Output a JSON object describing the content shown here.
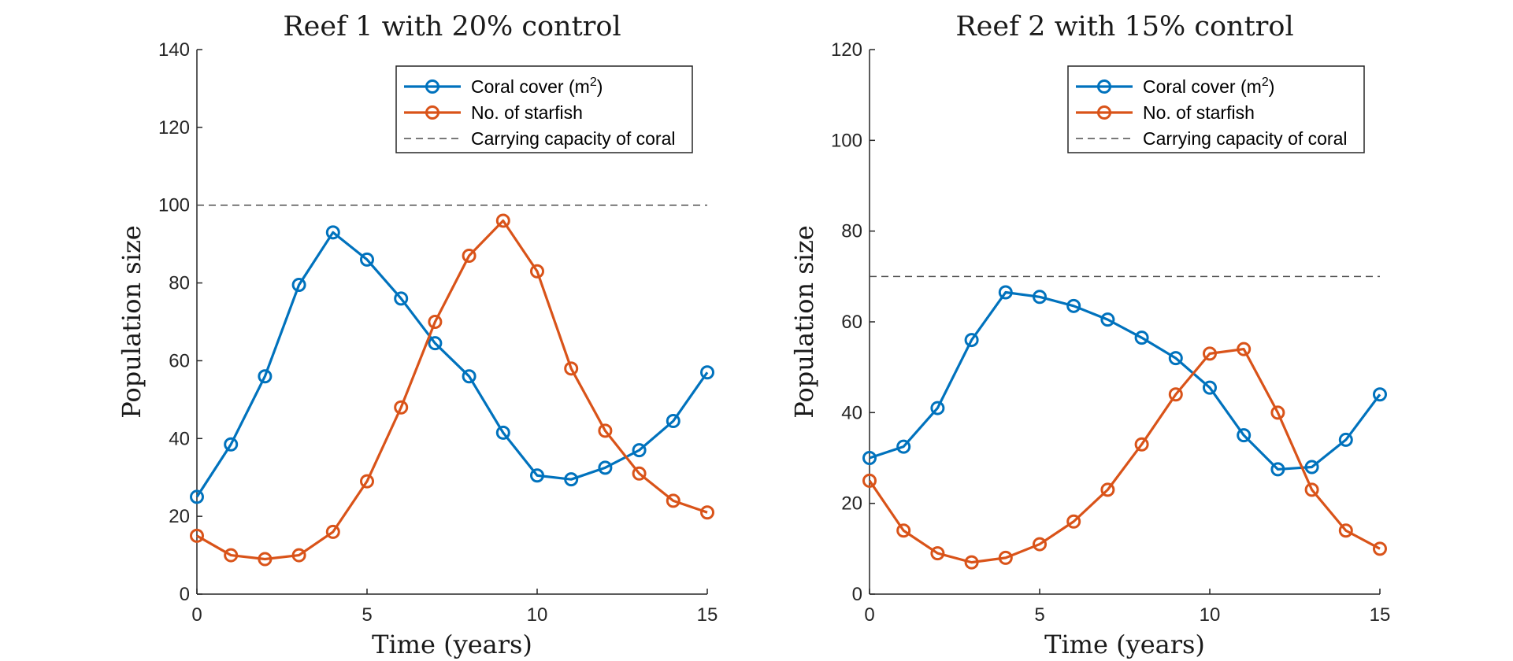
{
  "chart_data": [
    {
      "type": "line",
      "title": "Reef 1 with 20% control",
      "xlabel": "Time (years)",
      "ylabel": "Population size",
      "xlim": [
        0,
        15
      ],
      "ylim": [
        0,
        140
      ],
      "xticks": [
        0,
        5,
        10,
        15
      ],
      "yticks": [
        0,
        20,
        40,
        60,
        80,
        100,
        120,
        140
      ],
      "x": [
        0,
        1,
        2,
        3,
        4,
        5,
        6,
        7,
        8,
        9,
        10,
        11,
        12,
        13,
        14,
        15
      ],
      "series": [
        {
          "name": "Coral cover (m2)",
          "legend_base": "Coral cover (m",
          "legend_sup": "2",
          "legend_tail": ")",
          "color": "#0072BD",
          "marker": "circle",
          "values": [
            25,
            38.5,
            56,
            79.5,
            93,
            86,
            76,
            64.5,
            56,
            41.5,
            30.5,
            29.5,
            32.5,
            37,
            44.5,
            57
          ]
        },
        {
          "name": "No. of starfish",
          "color": "#D95319",
          "marker": "circle",
          "values": [
            15,
            10,
            9,
            10,
            16,
            29,
            48,
            70,
            87,
            96,
            83,
            58,
            42,
            31,
            24,
            21
          ]
        },
        {
          "name": "Carrying capacity of coral",
          "color": "#4d4d4d",
          "style": "dashed",
          "value": 100
        }
      ],
      "legend_position": "top-right",
      "grid": false
    },
    {
      "type": "line",
      "title": "Reef 2 with 15% control",
      "xlabel": "Time (years)",
      "ylabel": "Population size",
      "xlim": [
        0,
        15
      ],
      "ylim": [
        0,
        120
      ],
      "xticks": [
        0,
        5,
        10,
        15
      ],
      "yticks": [
        0,
        20,
        40,
        60,
        80,
        100,
        120
      ],
      "x": [
        0,
        1,
        2,
        3,
        4,
        5,
        6,
        7,
        8,
        9,
        10,
        11,
        12,
        13,
        14,
        15
      ],
      "series": [
        {
          "name": "Coral cover (m2)",
          "legend_base": "Coral cover (m",
          "legend_sup": "2",
          "legend_tail": ")",
          "color": "#0072BD",
          "marker": "circle",
          "values": [
            30,
            32.5,
            41,
            56,
            66.5,
            65.5,
            63.5,
            60.5,
            56.5,
            52,
            45.5,
            35,
            27.5,
            28,
            34,
            44
          ]
        },
        {
          "name": "No. of starfish",
          "color": "#D95319",
          "marker": "circle",
          "values": [
            25,
            14,
            9,
            7,
            8,
            11,
            16,
            23,
            33,
            44,
            53,
            54,
            40,
            23,
            14,
            10
          ]
        },
        {
          "name": "Carrying capacity of coral",
          "color": "#4d4d4d",
          "style": "dashed",
          "value": 70
        }
      ],
      "legend_position": "top-right",
      "grid": false
    }
  ]
}
